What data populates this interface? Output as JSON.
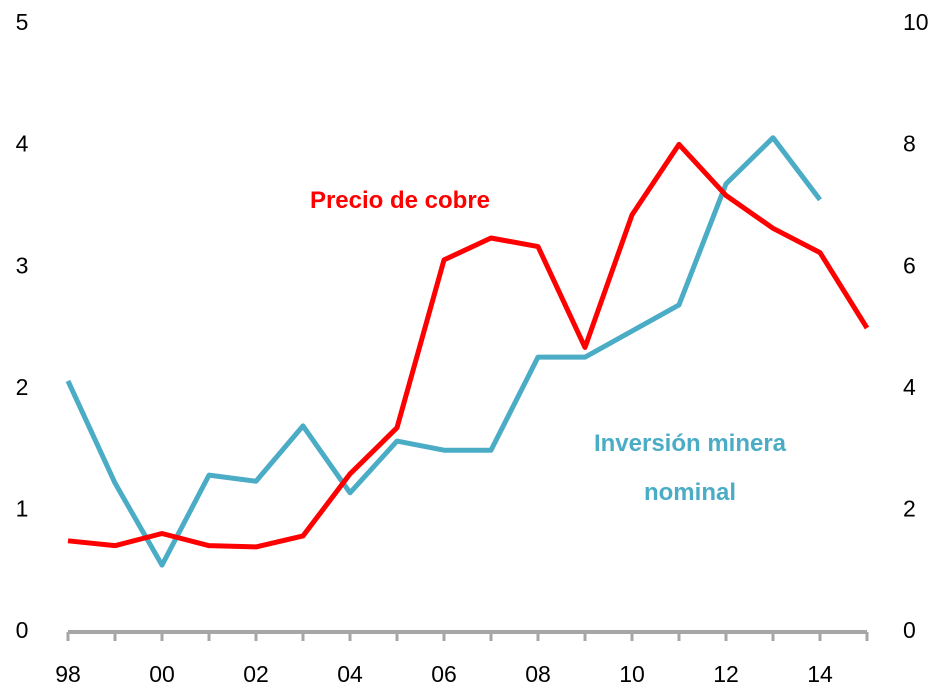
{
  "chart_data": {
    "type": "line",
    "categories": [
      "98",
      null,
      "00",
      null,
      "02",
      null,
      "04",
      null,
      "06",
      null,
      "08",
      null,
      "10",
      null,
      "12",
      null,
      "14",
      null
    ],
    "series": [
      {
        "name": "Precio de cobre",
        "color": "#ff0000",
        "axis": "y",
        "values": [
          0.75,
          0.71,
          0.81,
          0.71,
          0.7,
          0.79,
          1.3,
          1.68,
          3.06,
          3.24,
          3.17,
          2.34,
          3.43,
          4.01,
          3.59,
          3.32,
          3.12,
          2.5
        ]
      },
      {
        "name": "Inversión minera nominal",
        "color": "#4bacc6",
        "axis": "y2",
        "values": [
          4.13,
          2.45,
          1.1,
          2.58,
          2.48,
          3.39,
          2.29,
          3.14,
          2.99,
          2.99,
          4.52,
          4.52,
          4.95,
          5.38,
          7.37,
          8.13,
          7.11,
          null
        ]
      }
    ],
    "ylim": [
      0,
      5
    ],
    "yticks": [
      0,
      1,
      2,
      3,
      4,
      5
    ],
    "y2lim": [
      0,
      10
    ],
    "y2ticks": [
      0,
      2,
      4,
      6,
      8,
      10
    ]
  }
}
